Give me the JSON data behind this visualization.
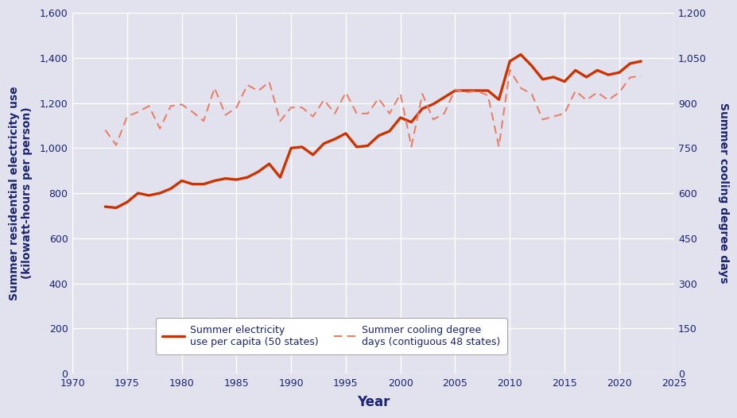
{
  "years": [
    1973,
    1974,
    1975,
    1976,
    1977,
    1978,
    1979,
    1980,
    1981,
    1982,
    1983,
    1984,
    1985,
    1986,
    1987,
    1988,
    1989,
    1990,
    1991,
    1992,
    1993,
    1994,
    1995,
    1996,
    1997,
    1998,
    1999,
    2000,
    2001,
    2002,
    2003,
    2004,
    2005,
    2006,
    2007,
    2008,
    2009,
    2010,
    2011,
    2012,
    2013,
    2014,
    2015,
    2016,
    2017,
    2018,
    2019,
    2020,
    2021,
    2022
  ],
  "electricity": [
    740,
    735,
    760,
    800,
    790,
    800,
    820,
    855,
    840,
    840,
    855,
    865,
    860,
    870,
    895,
    930,
    870,
    1000,
    1005,
    970,
    1020,
    1040,
    1065,
    1005,
    1010,
    1055,
    1075,
    1135,
    1115,
    1175,
    1195,
    1225,
    1255,
    1255,
    1255,
    1255,
    1215,
    1385,
    1415,
    1365,
    1305,
    1315,
    1295,
    1345,
    1315,
    1345,
    1325,
    1335,
    1375,
    1385
  ],
  "cooling_days": [
    810,
    760,
    855,
    870,
    890,
    815,
    890,
    895,
    870,
    840,
    950,
    860,
    885,
    960,
    940,
    970,
    840,
    885,
    885,
    855,
    910,
    865,
    935,
    865,
    865,
    915,
    865,
    930,
    755,
    930,
    845,
    865,
    945,
    935,
    940,
    925,
    755,
    1010,
    950,
    930,
    845,
    855,
    865,
    940,
    910,
    935,
    910,
    935,
    985,
    990
  ],
  "electricity_color": "#cc3300",
  "cooling_color": "#e8806a",
  "bg_color": "#e2e2ee",
  "grid_color": "#ffffff",
  "text_color": "#1a2472",
  "ylim_left": [
    0,
    1600
  ],
  "ylim_right": [
    0,
    1200
  ],
  "yticks_left": [
    0,
    200,
    400,
    600,
    800,
    1000,
    1200,
    1400,
    1600
  ],
  "yticks_right": [
    0,
    150,
    300,
    450,
    600,
    750,
    900,
    1050,
    1200
  ],
  "xlim": [
    1970,
    2025
  ],
  "xticks": [
    1970,
    1975,
    1980,
    1985,
    1990,
    1995,
    2000,
    2005,
    2010,
    2015,
    2020,
    2025
  ],
  "xlabel": "Year",
  "ylabel_left": "Summer residential electricity use\n(kilowatt-hours per person)",
  "ylabel_right": "Summer cooling degree days",
  "legend_label_solid": "Summer electricity\nuse per capita (50 states)",
  "legend_label_dashed": "Summer cooling degree\ndays (contiguous 48 states)"
}
